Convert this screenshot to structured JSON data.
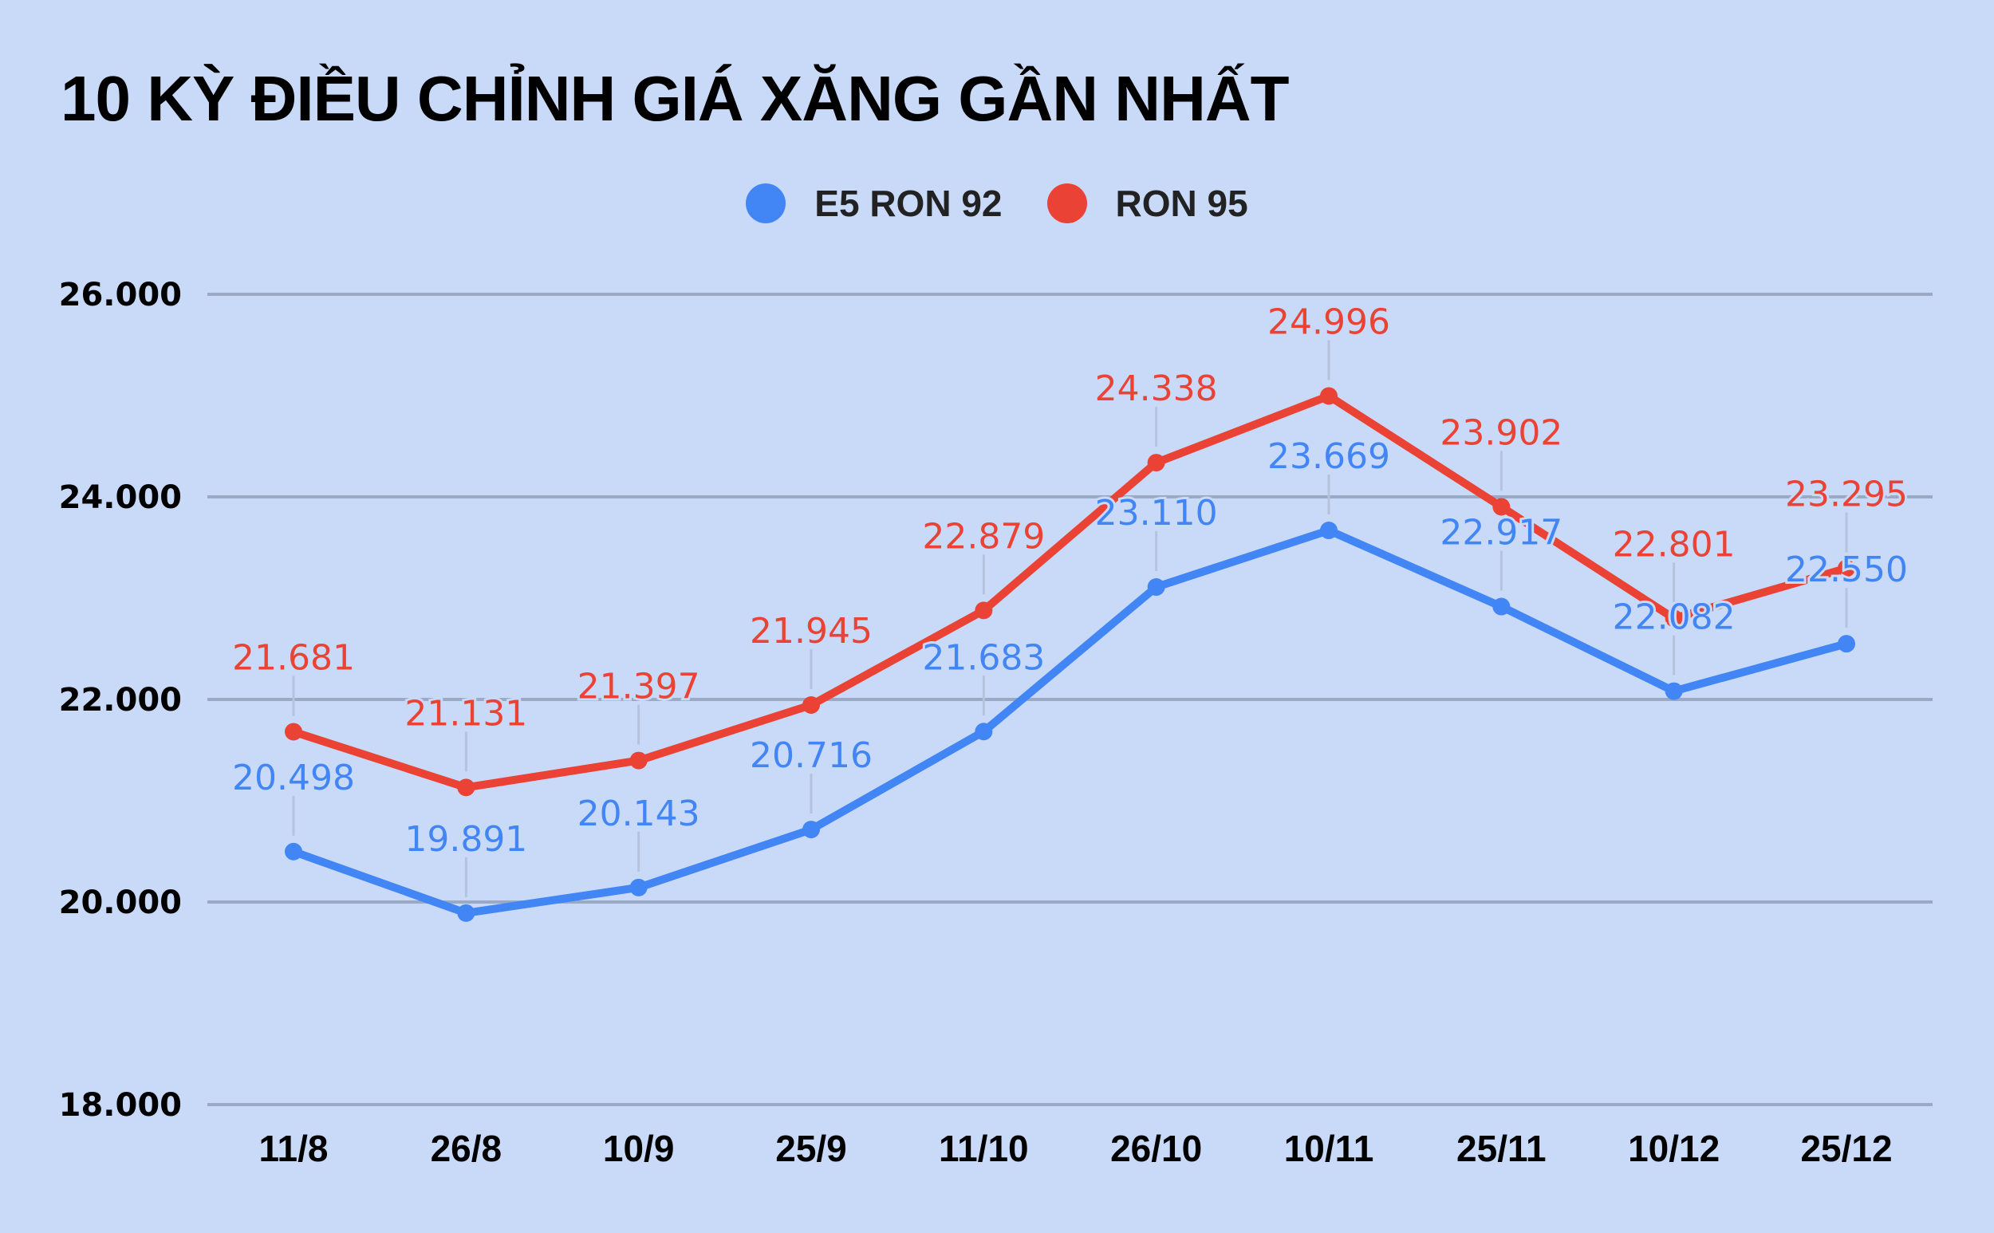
{
  "title": "10 KỲ ĐIỀU CHỈNH GIÁ XĂNG GẦN NHẤT",
  "colors": {
    "background": "#c9daf8",
    "e5": "#4285f4",
    "ron95": "#ea4335",
    "grid": "#9aa9c4",
    "leader": "#b3c3de"
  },
  "legend": [
    {
      "label": "E5 RON 92",
      "color": "#4285f4"
    },
    {
      "label": "RON 95",
      "color": "#ea4335"
    }
  ],
  "chart_data": {
    "type": "line",
    "title": "10 KỲ ĐIỀU CHỈNH GIÁ XĂNG GẦN NHẤT",
    "xlabel": "",
    "ylabel": "",
    "categories": [
      "11/8",
      "26/8",
      "10/9",
      "25/9",
      "11/10",
      "26/10",
      "10/11",
      "25/11",
      "10/12",
      "25/12"
    ],
    "series": [
      {
        "name": "E5 RON 92",
        "color": "#4285f4",
        "values": [
          20498,
          19891,
          20143,
          20716,
          21683,
          23110,
          23669,
          22917,
          22082,
          22550
        ],
        "labels": [
          "20.498",
          "19.891",
          "20.143",
          "20.716",
          "21.683",
          "23.110",
          "23.669",
          "22.917",
          "22.082",
          "22.550"
        ]
      },
      {
        "name": "RON 95",
        "color": "#ea4335",
        "values": [
          21681,
          21131,
          21397,
          21945,
          22879,
          24338,
          24996,
          23902,
          22801,
          23295
        ],
        "labels": [
          "21.681",
          "21.131",
          "21.397",
          "21.945",
          "22.879",
          "24.338",
          "24.996",
          "23.902",
          "22.801",
          "23.295"
        ]
      }
    ],
    "ylim": [
      18000,
      26000
    ],
    "yticks": [
      18000,
      20000,
      22000,
      24000,
      26000
    ],
    "ytick_labels": [
      "18.000",
      "20.000",
      "22.000",
      "24.000",
      "26.000"
    ],
    "grid": true,
    "legend_position": "top"
  }
}
